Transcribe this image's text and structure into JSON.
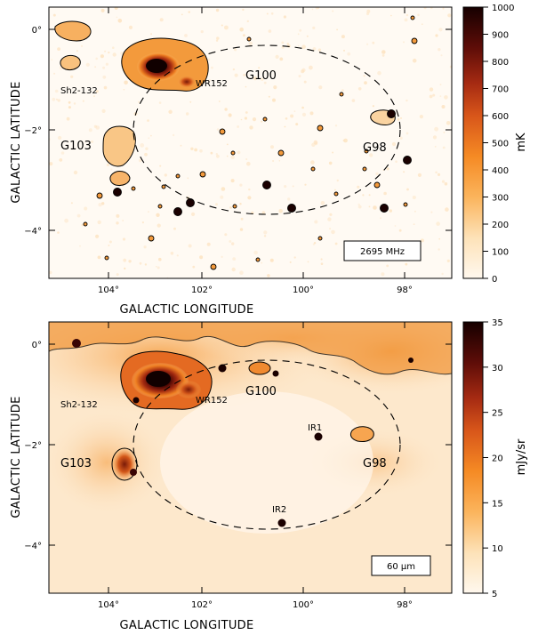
{
  "colors": {
    "cmap_low": "#fff6ea",
    "cmap_mid1": "#fbbf6a",
    "cmap_mid2": "#f07a1a",
    "cmap_mid3": "#b8370f",
    "cmap_high": "#1a0000",
    "contour": "#000000"
  },
  "panels": [
    {
      "xlabel": "GALACTIC LONGITUDE",
      "ylabel": "GALACTIC LATITUDE",
      "xticks": [
        "104°",
        "102°",
        "100°",
        "98°"
      ],
      "yticks": [
        "0°",
        "−2°",
        "−4°"
      ],
      "legend_label": "2695 MHz",
      "colorbar": {
        "unit": "mK",
        "ticks": [
          "1000",
          "900",
          "800",
          "700",
          "600",
          "500",
          "400",
          "300",
          "200",
          "100",
          "0"
        ]
      },
      "sources": [
        {
          "name": "Sh2-132"
        },
        {
          "name": "WR152"
        },
        {
          "name": "G100"
        },
        {
          "name": "G103"
        },
        {
          "name": "G98"
        }
      ]
    },
    {
      "xlabel": "GALACTIC LONGITUDE",
      "ylabel": "GALACTIC LATITUDE",
      "xticks": [
        "104°",
        "102°",
        "100°",
        "98°"
      ],
      "yticks": [
        "0°",
        "−2°",
        "−4°"
      ],
      "legend_label": "60 μm",
      "colorbar": {
        "unit": "mJy/sr",
        "ticks": [
          "35",
          "30",
          "25",
          "20",
          "15",
          "10",
          "5"
        ]
      },
      "sources": [
        {
          "name": "Sh2-132"
        },
        {
          "name": "WR152"
        },
        {
          "name": "G100"
        },
        {
          "name": "G103"
        },
        {
          "name": "G98"
        },
        {
          "name": "IR1"
        },
        {
          "name": "IR2"
        }
      ]
    }
  ]
}
